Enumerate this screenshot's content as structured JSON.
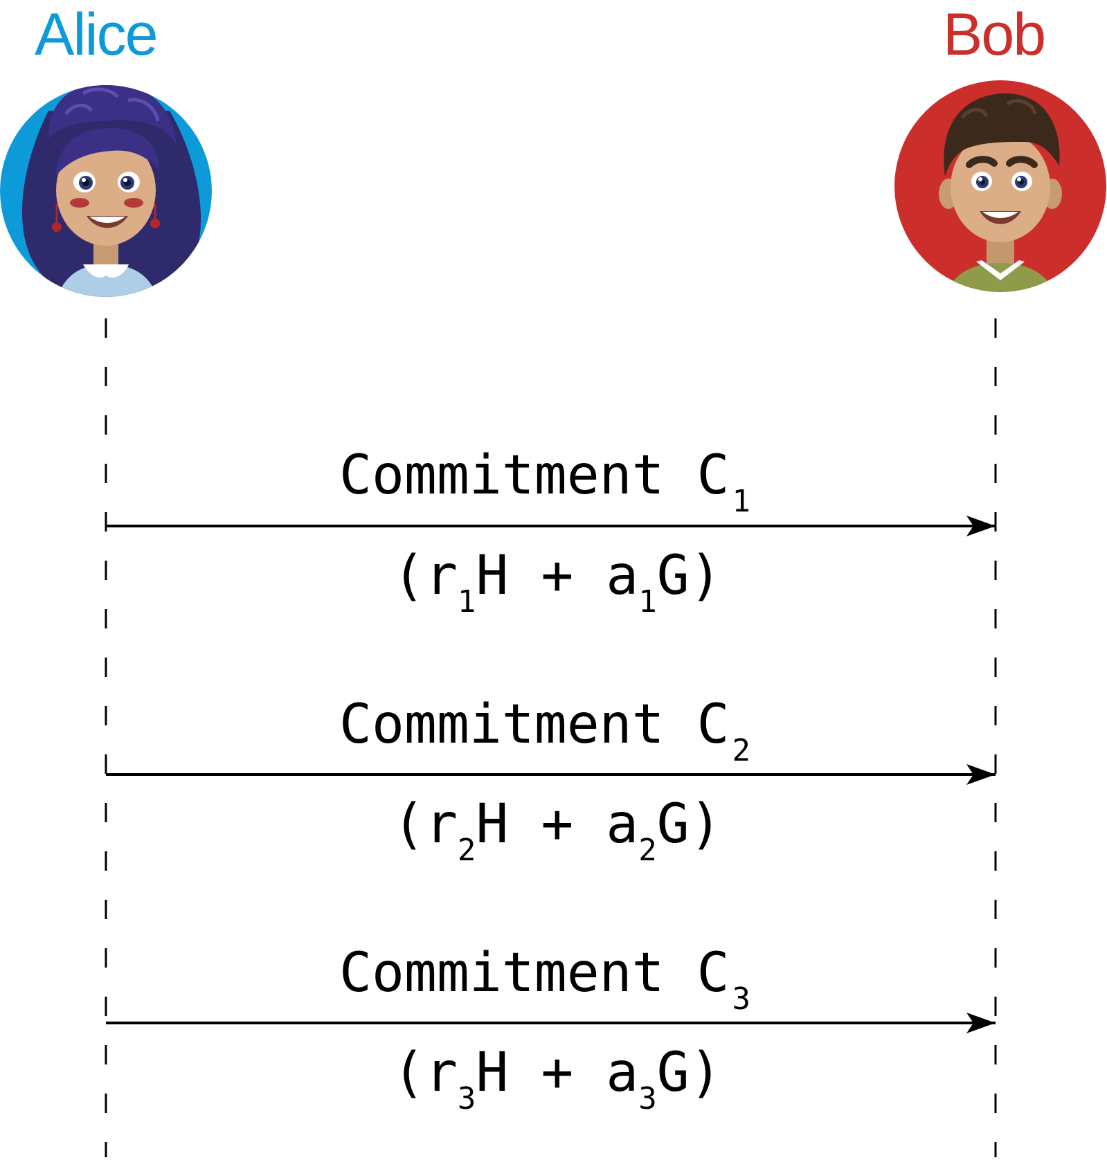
{
  "actors": {
    "alice": {
      "name": "Alice",
      "color": "#0d9ad8"
    },
    "bob": {
      "name": "Bob",
      "color": "#cc2f2b"
    }
  },
  "messages": [
    {
      "label": "Commitment C",
      "label_sub": "1",
      "formula": [
        {
          "t": "(r"
        },
        {
          "s": "1"
        },
        {
          "t": "H + a"
        },
        {
          "s": "1"
        },
        {
          "t": "G)"
        }
      ]
    },
    {
      "label": "Commitment C",
      "label_sub": "2",
      "formula": [
        {
          "t": "(r"
        },
        {
          "s": "2"
        },
        {
          "t": "H + a"
        },
        {
          "s": "2"
        },
        {
          "t": "G)"
        }
      ]
    },
    {
      "label": "Commitment C",
      "label_sub": "3",
      "formula": [
        {
          "t": "(r"
        },
        {
          "s": "3"
        },
        {
          "t": "H + a"
        },
        {
          "s": "3"
        },
        {
          "t": "G)"
        }
      ]
    }
  ]
}
